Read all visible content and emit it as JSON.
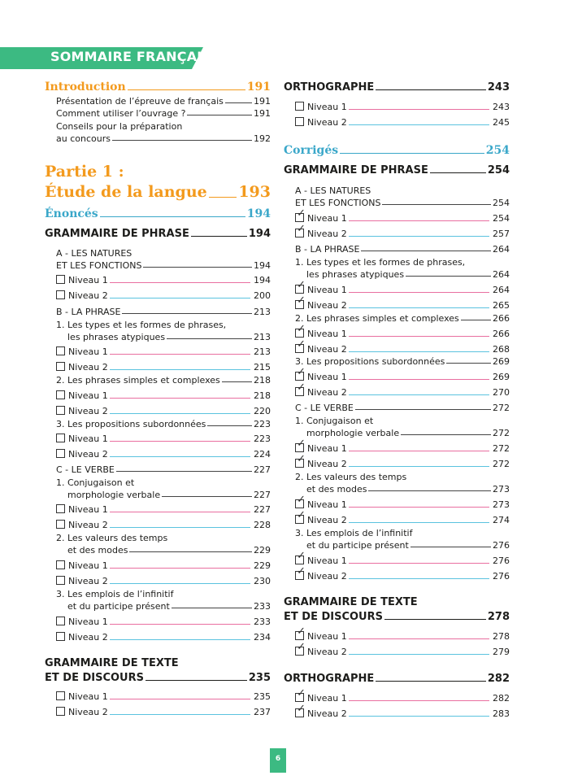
{
  "header": {
    "title": "SOMMAIRE FRANÇAIS"
  },
  "colors": {
    "green": "#3cba82",
    "orange": "#f39a1d",
    "blue": "#3aa7c9",
    "pink": "#e96fa0",
    "cyan": "#5bc3df"
  },
  "left": {
    "introduction": {
      "label": "Introduction",
      "page": "191"
    },
    "intro_items": [
      {
        "label": "Présentation de l’épreuve de français",
        "page": "191"
      },
      {
        "label": "Comment utiliser l’ouvrage ?",
        "page": "191"
      },
      {
        "label_line1": "Conseils pour la préparation",
        "label_line2": "au concours",
        "page": "192"
      }
    ],
    "partie": {
      "line1": "Partie 1 :",
      "line2": "Étude de la langue",
      "page": "193"
    },
    "enonces": {
      "label": "Énoncés",
      "page": "194"
    },
    "grammaire_phrase": {
      "label": "GRAMMAIRE DE PHRASE",
      "page": "194",
      "a_line1": "A - LES NATURES",
      "a_line2": "ET LES FONCTIONS",
      "a_page": "194",
      "a_n1": "194",
      "a_n2": "200",
      "b_label": "B - LA PHRASE",
      "b_page": "213",
      "b1_line1": "1. Les types et les formes de phrases,",
      "b1_line2": "les phrases atypiques",
      "b1_page": "213",
      "b1_n1": "213",
      "b1_n2": "215",
      "b2_label": "2. Les phrases simples et complexes",
      "b2_page": "218",
      "b2_n1": "218",
      "b2_n2": "220",
      "b3_label": "3. Les propositions subordonnées",
      "b3_page": "223",
      "b3_n1": "223",
      "b3_n2": "224",
      "c_label": "C - LE VERBE",
      "c_page": "227",
      "c1_line1": "1. Conjugaison et",
      "c1_line2": "morphologie verbale",
      "c1_page": "227",
      "c1_n1": "227",
      "c1_n2": "228",
      "c2_line1": "2. Les valeurs des temps",
      "c2_line2": "et des modes",
      "c2_page": "229",
      "c2_n1": "229",
      "c2_n2": "230",
      "c3_line1": "3. Les emplois de l’infinitif",
      "c3_line2": "et du participe présent",
      "c3_page": "233",
      "c3_n1": "233",
      "c3_n2": "234"
    },
    "grammaire_texte": {
      "line1": "GRAMMAIRE DE TEXTE",
      "line2": "ET DE DISCOURS",
      "page": "235",
      "n1": "235",
      "n2": "237"
    }
  },
  "right": {
    "orthographe": {
      "label": "ORTHOGRAPHE",
      "page": "243",
      "n1": "243",
      "n2": "245"
    },
    "corriges": {
      "label": "Corrigés",
      "page": "254"
    },
    "grammaire_phrase": {
      "label": "GRAMMAIRE DE PHRASE",
      "page": "254",
      "a_line1": "A - LES NATURES",
      "a_line2": "ET LES FONCTIONS",
      "a_page": "254",
      "a_n1": "254",
      "a_n2": "257",
      "b_label": "B - LA PHRASE",
      "b_page": "264",
      "b1_line1": "1. Les types et les formes de phrases,",
      "b1_line2": "les phrases atypiques",
      "b1_page": "264",
      "b1_n1": "264",
      "b1_n2": "265",
      "b2_label": "2. Les phrases simples et complexes",
      "b2_page": "266",
      "b2_n1": "266",
      "b2_n2": "268",
      "b3_label": "3. Les propositions subordonnées",
      "b3_page": "269",
      "b3_n1": "269",
      "b3_n2": "270",
      "c_label": "C - LE VERBE",
      "c_page": "272",
      "c1_line1": "1. Conjugaison et",
      "c1_line2": "morphologie verbale",
      "c1_page": "272",
      "c1_n1": "272",
      "c1_n2": "272",
      "c2_line1": "2. Les valeurs des temps",
      "c2_line2": "et des modes",
      "c2_page": "273",
      "c2_n1": "273",
      "c2_n2": "274",
      "c3_line1": "3. Les emplois de l’infinitif",
      "c3_line2": "et du participe présent",
      "c3_page": "276",
      "c3_n1": "276",
      "c3_n2": "276"
    },
    "grammaire_texte": {
      "line1": "GRAMMAIRE DE TEXTE",
      "line2": "ET DE DISCOURS",
      "page": "278",
      "n1": "278",
      "n2": "279"
    },
    "orthographe2": {
      "label": "ORTHOGRAPHE",
      "page": "282",
      "n1": "282",
      "n2": "283"
    }
  },
  "levels": {
    "niveau1": "Niveau 1",
    "niveau2": "Niveau 2",
    "check_mark": "✓"
  },
  "footer": {
    "page_number": "6"
  }
}
